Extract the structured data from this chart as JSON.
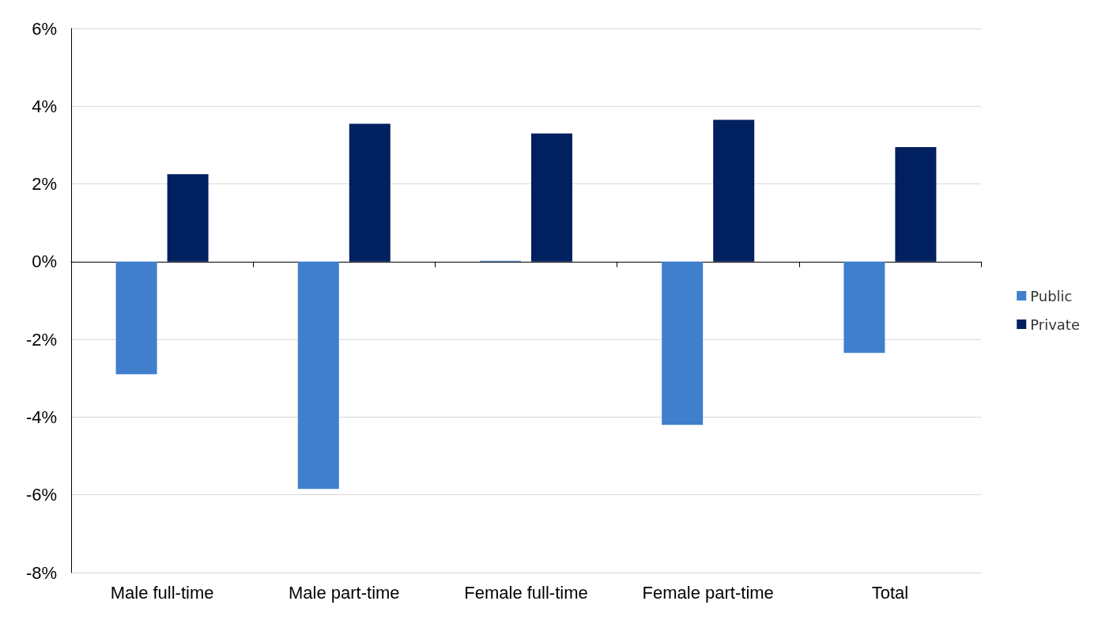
{
  "chart_data": {
    "type": "bar",
    "categories": [
      "Male full-time",
      "Male part-time",
      "Female full-time",
      "Female part-time",
      "Total"
    ],
    "series": [
      {
        "name": "Public",
        "color": "#3f7fcc",
        "values": [
          -2.9,
          -5.85,
          0.02,
          -4.2,
          -2.35
        ]
      },
      {
        "name": "Private",
        "color": "#002060",
        "values": [
          2.25,
          3.55,
          3.3,
          3.65,
          2.95
        ]
      }
    ],
    "ylim": [
      -8,
      6
    ],
    "yticks": [
      {
        "value": -8,
        "label": "-8%"
      },
      {
        "value": -6,
        "label": "-6%"
      },
      {
        "value": -4,
        "label": "-4%"
      },
      {
        "value": -2,
        "label": "-2%"
      },
      {
        "value": 0,
        "label": "0%"
      },
      {
        "value": 2,
        "label": "2%"
      },
      {
        "value": 4,
        "label": "4%"
      },
      {
        "value": 6,
        "label": "6%"
      }
    ],
    "grid": "y",
    "legend": "right"
  }
}
